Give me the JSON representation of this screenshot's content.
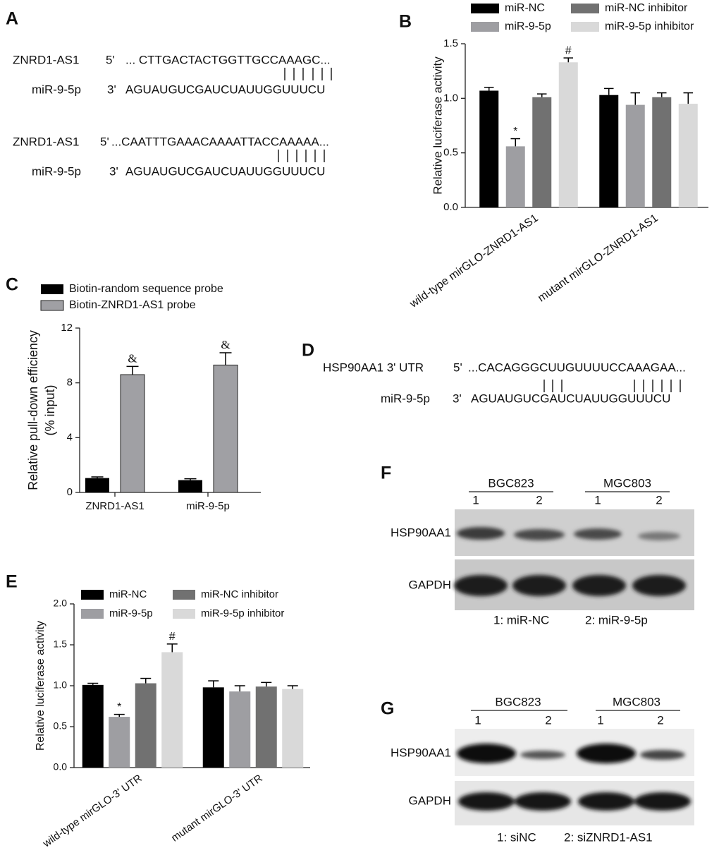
{
  "chart_data": [
    {
      "type": "bar",
      "panel": "B",
      "ylabel": "Relative luciferase activity",
      "categories": [
        "wild-type mirGLO-ZNRD1-AS1",
        "mutant mirGLO-ZNRD1-AS1"
      ],
      "series": [
        {
          "name": "miR-NC",
          "color": "#000000",
          "values": [
            1.07,
            1.03
          ],
          "errors": [
            0.03,
            0.06
          ],
          "annotations": [
            null,
            null
          ]
        },
        {
          "name": "miR-9-5p",
          "color": "#9e9ea2",
          "values": [
            0.56,
            0.94
          ],
          "errors": [
            0.07,
            0.11
          ],
          "annotations": [
            "*",
            null
          ]
        },
        {
          "name": "miR-NC inhibitor",
          "color": "#717171",
          "values": [
            1.01,
            1.01
          ],
          "errors": [
            0.03,
            0.04
          ],
          "annotations": [
            null,
            null
          ]
        },
        {
          "name": "miR-9-5p inhibitor",
          "color": "#d9d9d9",
          "values": [
            1.33,
            0.95
          ],
          "errors": [
            0.04,
            0.1
          ],
          "annotations": [
            "#",
            null
          ]
        }
      ],
      "ylim": [
        0,
        1.5
      ],
      "yticks": [
        {
          "value": 0,
          "label": "0.0"
        },
        0.5,
        {
          "value": 1,
          "label": "1.0"
        },
        1.5
      ]
    },
    {
      "type": "bar",
      "panel": "C",
      "ylabel": [
        "Relative pull-down efficiency",
        "(% input)"
      ],
      "categories": [
        "ZNRD1-AS1",
        "miR-9-5p"
      ],
      "series": [
        {
          "name": "Biotin-random sequence probe",
          "color": "#000000",
          "values": [
            1.05,
            0.9
          ],
          "errors": [
            0.08,
            0.1
          ],
          "annotations": [
            null,
            null
          ]
        },
        {
          "name": "Biotin-ZNRD1-AS1 probe",
          "color": "#a0a0a4",
          "values": [
            8.6,
            9.3
          ],
          "errors": [
            0.6,
            0.9
          ],
          "annotations": [
            "&",
            "&"
          ]
        }
      ],
      "ylim": [
        0,
        12
      ],
      "yticks": [
        0,
        4,
        8,
        12
      ]
    },
    {
      "type": "bar",
      "panel": "E",
      "ylabel": "Relative luciferase activity",
      "categories": [
        "wild-type mirGLO-3' UTR",
        "mutant mirGLO-3' UTR"
      ],
      "series": [
        {
          "name": "miR-NC",
          "color": "#000000",
          "values": [
            1.01,
            0.98
          ],
          "errors": [
            0.02,
            0.08
          ],
          "annotations": [
            null,
            null
          ]
        },
        {
          "name": "miR-9-5p",
          "color": "#9e9ea2",
          "values": [
            0.62,
            0.93
          ],
          "errors": [
            0.03,
            0.07
          ],
          "annotations": [
            "*",
            null
          ]
        },
        {
          "name": "miR-NC inhibitor",
          "color": "#717171",
          "values": [
            1.03,
            0.99
          ],
          "errors": [
            0.06,
            0.05
          ],
          "annotations": [
            null,
            null
          ]
        },
        {
          "name": "miR-9-5p inhibitor",
          "color": "#d9d9d9",
          "values": [
            1.41,
            0.96
          ],
          "errors": [
            0.1,
            0.04
          ],
          "annotations": [
            "#",
            null
          ]
        }
      ],
      "ylim": [
        0,
        2
      ],
      "yticks": [
        {
          "value": 0,
          "label": "0.0"
        },
        0.5,
        {
          "value": 1,
          "label": "1.0"
        },
        1.5,
        {
          "value": 2,
          "label": "2.0"
        }
      ]
    }
  ],
  "sequences": [
    {
      "panel": "A",
      "pairs": [
        {
          "top": {
            "name": "ZNRD1-AS1",
            "end": "5'",
            "seq": "... CTTGACTACTGGTTGCCAAAGC..."
          },
          "bottom": {
            "name": "miR-9-5p",
            "end": "3'",
            "seq": "AGUAUGUCGAUCUAUUGGUUUCU"
          }
        },
        {
          "top": {
            "name": "ZNRD1-AS1",
            "end": "5'",
            "seq": "...CAATTTGAAACAAAATTACCAAAAA..."
          },
          "bottom": {
            "name": "miR-9-5p",
            "end": "3'",
            "seq": "AGUAUGUCGAUCUAUUGGUUUCU"
          }
        }
      ]
    },
    {
      "panel": "D",
      "pairs": [
        {
          "top": {
            "name": "HSP90AA1 3' UTR",
            "end": "5'",
            "seq": "...CACAGGGCUUGUUUUCCAAAGAA..."
          },
          "bottom": {
            "name": "miR-9-5p",
            "end": "3'",
            "seq": "AGUAUGUCGAUCUAUUGGUUUCU"
          }
        }
      ]
    }
  ],
  "blots": [
    {
      "panel": "F",
      "groups": [
        "BGC823",
        "MGC803"
      ],
      "lanes": [
        "1",
        "2",
        "1",
        "2"
      ],
      "rows": [
        "HSP90AA1",
        "GAPDH"
      ],
      "legend": [
        "1: miR-NC",
        "2: miR-9-5p"
      ]
    },
    {
      "panel": "G",
      "groups": [
        "BGC823",
        "MGC803"
      ],
      "lanes": [
        "1",
        "2",
        "1",
        "2"
      ],
      "rows": [
        "HSP90AA1",
        "GAPDH"
      ],
      "legend": [
        "1: siNC",
        "2: siZNRD1-AS1"
      ]
    }
  ]
}
